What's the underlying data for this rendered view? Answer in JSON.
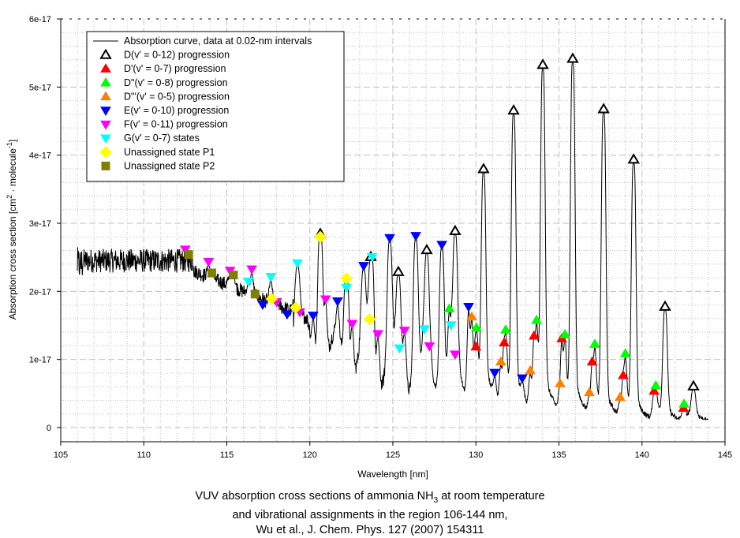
{
  "chart_data": {
    "type": "line",
    "title": "VUV absorption cross sections of ammonia NH3 at room temperature and vibrational assignments in the region 106-144 nm, Wu et al., J. Chem. Phys. 127 (2007) 154311",
    "caption_lines": {
      "line1_pre": "VUV absorption cross sections of ammonia NH",
      "line1_sub": "3",
      "line1_post": " at room temperature",
      "line2": "and vibrational assignments in the region 106-144 nm,",
      "line3": "Wu et al., J. Chem. Phys. 127 (2007) 154311"
    },
    "xlabel": "Wavelength [nm]",
    "ylabel": "Absorption cross section [cm² · molecule⁻¹]",
    "ylabel_parts": {
      "pre": "Absorption cross section [cm",
      "sup1": "2",
      "mid": " · molecule",
      "sup2": "-1",
      "post": "]"
    },
    "xlim": [
      105,
      145
    ],
    "ylim": [
      0,
      6e-17
    ],
    "xticks": [
      105,
      110,
      115,
      120,
      125,
      130,
      135,
      140,
      145
    ],
    "xtick_labels": [
      "105",
      "110",
      "115",
      "120",
      "125",
      "130",
      "135",
      "140",
      "145"
    ],
    "yticks": [
      0,
      1e-17,
      2e-17,
      3e-17,
      4e-17,
      5e-17,
      6e-17
    ],
    "ytick_labels": [
      "0",
      "1e-17",
      "2e-17",
      "3e-17",
      "4e-17",
      "5e-17",
      "6e-17"
    ],
    "grid": true,
    "legend_position": "top-left",
    "curve": {
      "name": "Absorption curve, data at 0.02-nm intervals",
      "x_range": [
        106.0,
        144.0
      ],
      "step_nm": 0.02,
      "noisy_plateau": {
        "x": [
          106.0,
          113.0
        ],
        "y": 2.45e-17
      },
      "peaks": [
        [
          120.63,
          2.8e-17
        ],
        [
          123.67,
          2.46e-17
        ],
        [
          125.33,
          2.24e-17
        ],
        [
          127.04,
          2.56e-17
        ],
        [
          128.75,
          2.84e-17
        ],
        [
          130.46,
          3.75e-17
        ],
        [
          132.27,
          4.61e-17
        ],
        [
          134.03,
          5.28e-17
        ],
        [
          135.83,
          5.37e-17
        ],
        [
          137.69,
          4.63e-17
        ],
        [
          139.5,
          3.89e-17
        ],
        [
          141.39,
          1.73e-17
        ],
        [
          143.1,
          5.6e-18
        ],
        [
          124.81,
          2.74e-17
        ],
        [
          126.38,
          2.77e-17
        ],
        [
          127.95,
          2.64e-17
        ],
        [
          123.24,
          2.33e-17
        ],
        [
          119.25,
          2.37e-17
        ],
        [
          122.2,
          2.19e-17
        ]
      ]
    },
    "series": [
      {
        "name": "D(v' = 0-12) progression",
        "marker": "triangle-up-open",
        "color": "#000000",
        "points": [
          [
            120.63,
            2.8e-17
          ],
          [
            123.67,
            2.46e-17
          ],
          [
            125.33,
            2.24e-17
          ],
          [
            127.04,
            2.56e-17
          ],
          [
            128.75,
            2.84e-17
          ],
          [
            130.46,
            3.75e-17
          ],
          [
            132.27,
            4.61e-17
          ],
          [
            134.03,
            5.28e-17
          ],
          [
            135.83,
            5.37e-17
          ],
          [
            137.69,
            4.63e-17
          ],
          [
            139.5,
            3.89e-17
          ],
          [
            141.39,
            1.73e-17
          ],
          [
            143.1,
            5.6e-18
          ]
        ]
      },
      {
        "name": "D'(v' = 0-7) progression",
        "marker": "triangle-up",
        "color": "#ff0000",
        "points": [
          [
            130.0,
            1.14e-17
          ],
          [
            131.7,
            1.2e-17
          ],
          [
            133.5,
            1.3e-17
          ],
          [
            135.17,
            1.26e-17
          ],
          [
            137.0,
            9.2e-18
          ],
          [
            138.87,
            7.2e-18
          ],
          [
            140.73,
            4.9e-18
          ],
          [
            142.5,
            2.4e-18
          ]
        ]
      },
      {
        "name": "D\"(v' = 0-8) progression",
        "marker": "triangle-up",
        "color": "#00ff00",
        "points": [
          [
            128.4,
            1.7e-17
          ],
          [
            130.03,
            1.42e-17
          ],
          [
            131.79,
            1.39e-17
          ],
          [
            133.65,
            1.53e-17
          ],
          [
            135.36,
            1.32e-17
          ],
          [
            137.16,
            1.18e-17
          ],
          [
            139.0,
            1.04e-17
          ],
          [
            140.83,
            5.7e-18
          ],
          [
            142.53,
            3e-18
          ]
        ]
      },
      {
        "name": "D\"'(v' = 0-5) progression",
        "marker": "triangle-up",
        "color": "#ff8000",
        "points": [
          [
            129.75,
            1.58e-17
          ],
          [
            131.5,
            9.2e-18
          ],
          [
            133.27,
            7.9e-18
          ],
          [
            135.07,
            6e-18
          ],
          [
            136.83,
            4.7e-18
          ],
          [
            138.68,
            4e-18
          ]
        ]
      },
      {
        "name": "E(v' = 0-10) progression",
        "marker": "triangle-down",
        "color": "#0000ff",
        "points": [
          [
            117.16,
            1.76e-17
          ],
          [
            118.63,
            1.62e-17
          ],
          [
            120.2,
            1.6e-17
          ],
          [
            121.67,
            1.81e-17
          ],
          [
            123.24,
            2.33e-17
          ],
          [
            124.81,
            2.74e-17
          ],
          [
            126.38,
            2.77e-17
          ],
          [
            127.95,
            2.64e-17
          ],
          [
            129.56,
            1.73e-17
          ],
          [
            131.13,
            7.6e-18
          ],
          [
            132.79,
            6.8e-18
          ]
        ]
      },
      {
        "name": "F(v' = 0-11) progression",
        "marker": "triangle-down",
        "color": "#ff00ff",
        "points": [
          [
            112.5,
            2.57e-17
          ],
          [
            113.9,
            2.39e-17
          ],
          [
            115.2,
            2.26e-17
          ],
          [
            116.5,
            2.28e-17
          ],
          [
            118.0,
            1.8e-17
          ],
          [
            119.4,
            1.65e-17
          ],
          [
            120.95,
            1.84e-17
          ],
          [
            122.55,
            1.48e-17
          ],
          [
            124.1,
            1.33e-17
          ],
          [
            125.7,
            1.38e-17
          ],
          [
            127.2,
            1.15e-17
          ],
          [
            128.75,
            1.03e-17
          ]
        ]
      },
      {
        "name": "G(v' = 0-7) states",
        "marker": "triangle-down",
        "color": "#00ffff",
        "points": [
          [
            116.3,
            2.1e-17
          ],
          [
            117.65,
            2.17e-17
          ],
          [
            119.25,
            2.37e-17
          ],
          [
            122.2,
            2.01e-17
          ],
          [
            123.75,
            2.46e-17
          ],
          [
            125.4,
            1.12e-17
          ],
          [
            126.9,
            1.4e-17
          ],
          [
            128.5,
            1.46e-17
          ]
        ]
      },
      {
        "name": "Unassigned state P1",
        "marker": "diamond",
        "color": "#ffff00",
        "points": [
          [
            117.7,
            1.89e-17
          ],
          [
            119.15,
            1.76e-17
          ],
          [
            120.63,
            2.8e-17
          ],
          [
            122.2,
            2.19e-17
          ],
          [
            123.6,
            1.59e-17
          ]
        ]
      },
      {
        "name": "Unassigned state P2",
        "marker": "square",
        "color": "#808000",
        "points": [
          [
            112.7,
            2.54e-17
          ],
          [
            114.1,
            2.27e-17
          ],
          [
            115.4,
            2.24e-17
          ],
          [
            116.7,
            1.96e-17
          ]
        ]
      }
    ]
  }
}
